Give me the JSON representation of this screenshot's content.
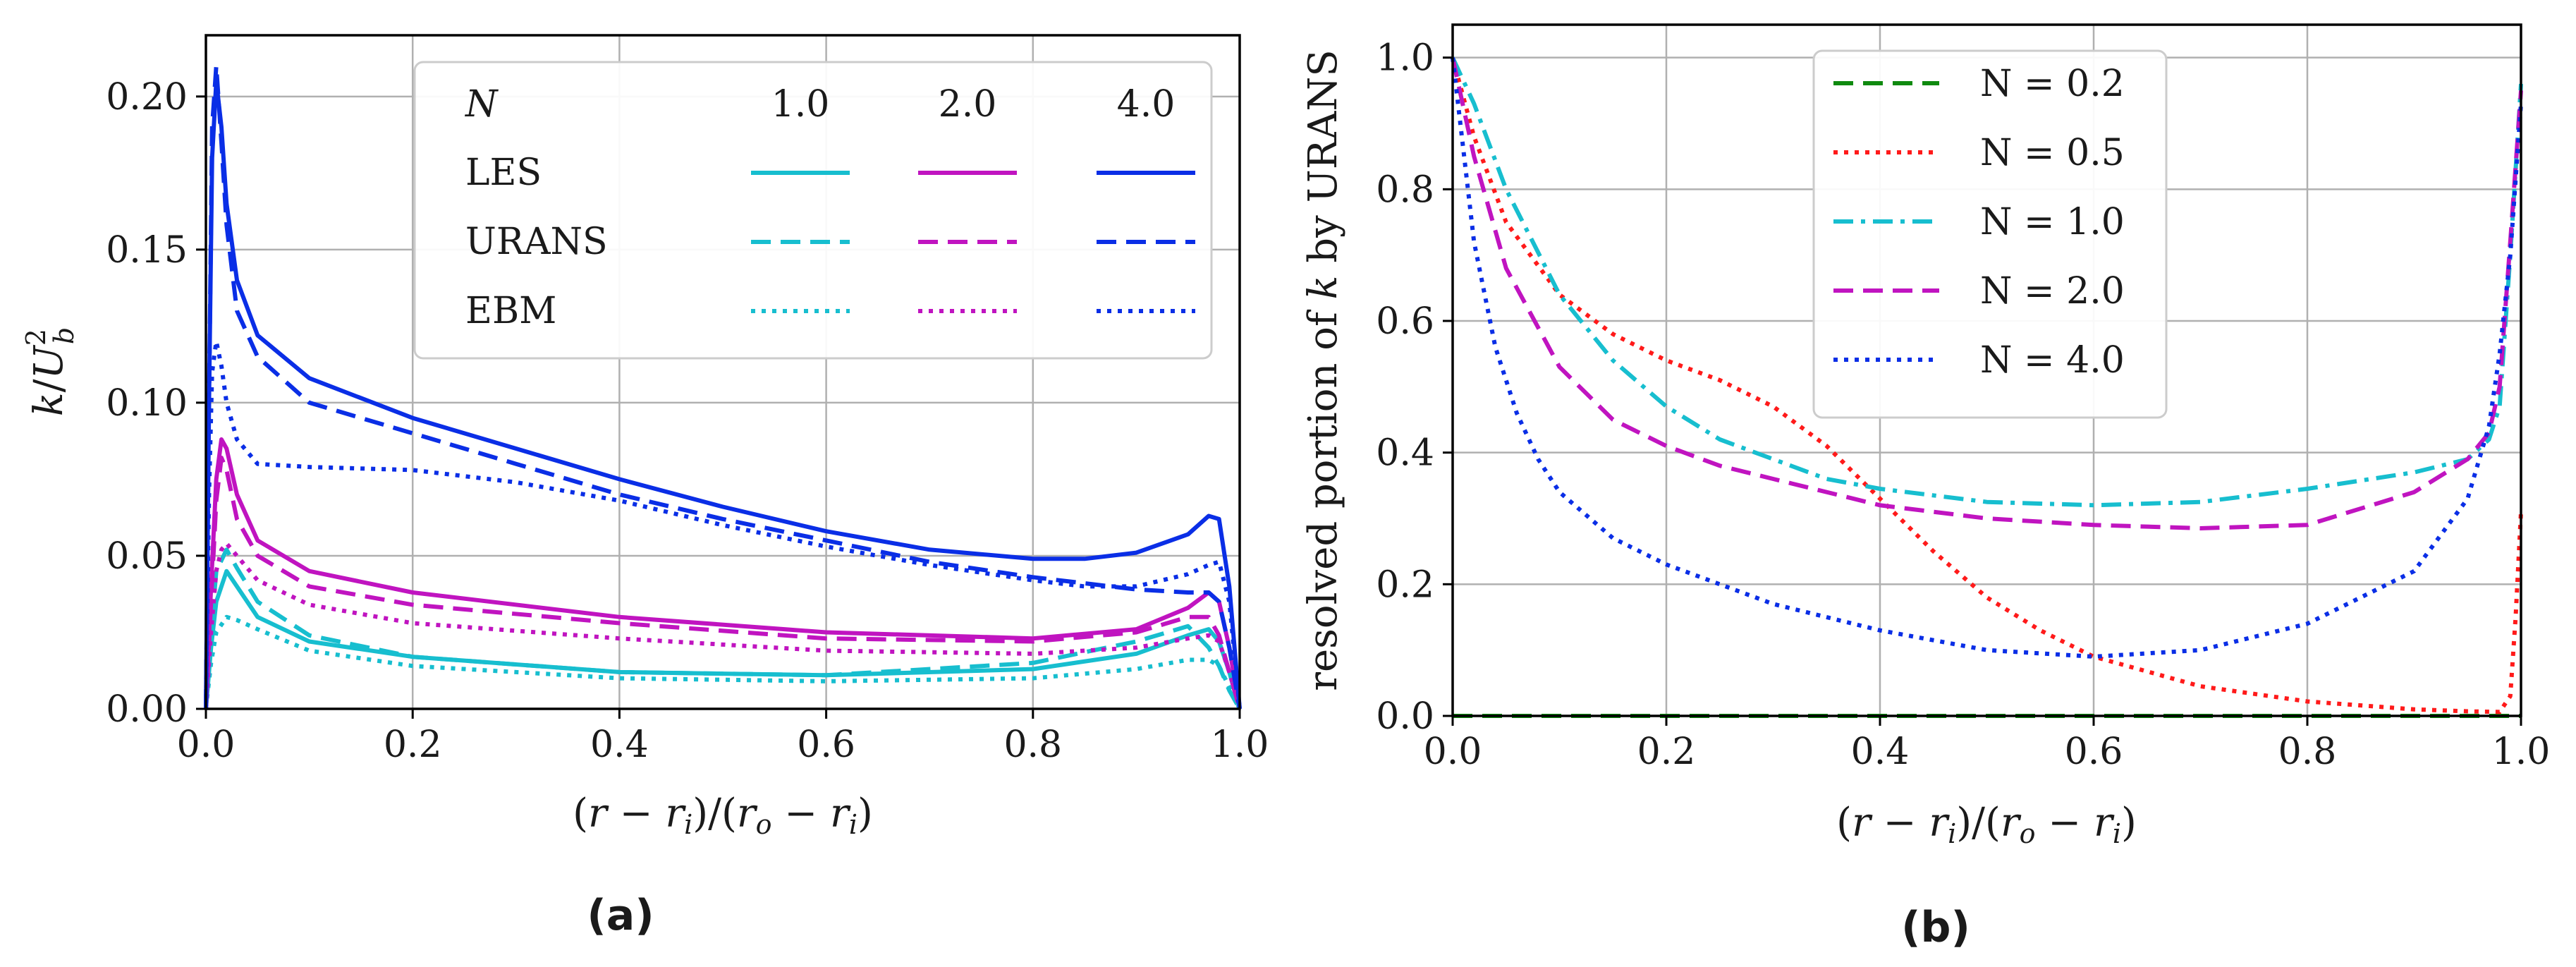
{
  "chart_data": [
    {
      "type": "line",
      "panel": "a",
      "caption": "(a)",
      "xlabel": "(r − r_i)/(r_o − r_i)",
      "ylabel": "k/U_b^2",
      "xlim": [
        0,
        1
      ],
      "ylim": [
        0,
        0.22
      ],
      "xticks": [
        "0.0",
        "0.2",
        "0.4",
        "0.6",
        "0.8",
        "1.0"
      ],
      "yticks": [
        "0.00",
        "0.05",
        "0.10",
        "0.15",
        "0.20"
      ],
      "grid": true,
      "legend_location": "upper-right",
      "legend_table": {
        "header": "N",
        "columns": [
          "1.0",
          "2.0",
          "4.0"
        ],
        "rows": [
          "LES",
          "URANS",
          "EBM"
        ]
      },
      "series": [
        {
          "name": "LES, N = 1.0",
          "model": "LES",
          "color": "#17becf",
          "style": "solid",
          "x": [
            0,
            0.005,
            0.01,
            0.02,
            0.03,
            0.05,
            0.1,
            0.2,
            0.4,
            0.6,
            0.8,
            0.9,
            0.95,
            0.97,
            0.98,
            0.99,
            1.0
          ],
          "y": [
            0,
            0.02,
            0.035,
            0.045,
            0.04,
            0.03,
            0.022,
            0.017,
            0.012,
            0.011,
            0.013,
            0.018,
            0.024,
            0.026,
            0.022,
            0.012,
            0
          ]
        },
        {
          "name": "URANS, N = 1.0",
          "model": "URANS",
          "color": "#17becf",
          "style": "dashed",
          "x": [
            0,
            0.005,
            0.01,
            0.02,
            0.03,
            0.05,
            0.1,
            0.2,
            0.4,
            0.6,
            0.8,
            0.9,
            0.95,
            0.97,
            0.98,
            0.99,
            1.0
          ],
          "y": [
            0,
            0.025,
            0.045,
            0.052,
            0.046,
            0.035,
            0.024,
            0.017,
            0.012,
            0.011,
            0.015,
            0.022,
            0.027,
            0.02,
            0.014,
            0.006,
            0
          ]
        },
        {
          "name": "EBM, N = 1.0",
          "model": "EBM",
          "color": "#17becf",
          "style": "dotted",
          "x": [
            0,
            0.005,
            0.01,
            0.02,
            0.03,
            0.05,
            0.1,
            0.2,
            0.4,
            0.6,
            0.8,
            0.9,
            0.95,
            0.97,
            0.98,
            0.99,
            1.0
          ],
          "y": [
            0,
            0.015,
            0.025,
            0.03,
            0.029,
            0.026,
            0.019,
            0.014,
            0.01,
            0.009,
            0.01,
            0.013,
            0.016,
            0.016,
            0.014,
            0.007,
            0
          ]
        },
        {
          "name": "LES, N = 2.0",
          "model": "LES",
          "color": "#c014c0",
          "style": "solid",
          "x": [
            0,
            0.005,
            0.01,
            0.015,
            0.02,
            0.03,
            0.05,
            0.1,
            0.2,
            0.4,
            0.6,
            0.8,
            0.9,
            0.95,
            0.97,
            0.98,
            0.99,
            1.0
          ],
          "y": [
            0,
            0.04,
            0.075,
            0.088,
            0.085,
            0.07,
            0.055,
            0.045,
            0.038,
            0.03,
            0.025,
            0.023,
            0.026,
            0.033,
            0.038,
            0.035,
            0.02,
            0
          ]
        },
        {
          "name": "URANS, N = 2.0",
          "model": "URANS",
          "color": "#c014c0",
          "style": "dashed",
          "x": [
            0,
            0.005,
            0.01,
            0.015,
            0.02,
            0.03,
            0.05,
            0.1,
            0.2,
            0.4,
            0.6,
            0.8,
            0.9,
            0.95,
            0.97,
            0.98,
            0.99,
            1.0
          ],
          "y": [
            0,
            0.035,
            0.068,
            0.082,
            0.078,
            0.062,
            0.05,
            0.04,
            0.034,
            0.028,
            0.023,
            0.022,
            0.025,
            0.03,
            0.03,
            0.024,
            0.012,
            0
          ]
        },
        {
          "name": "EBM, N = 2.0",
          "model": "EBM",
          "color": "#c014c0",
          "style": "dotted",
          "x": [
            0,
            0.005,
            0.01,
            0.015,
            0.02,
            0.03,
            0.05,
            0.1,
            0.2,
            0.4,
            0.6,
            0.8,
            0.9,
            0.95,
            0.97,
            0.98,
            0.99,
            1.0
          ],
          "y": [
            0,
            0.025,
            0.045,
            0.052,
            0.054,
            0.05,
            0.042,
            0.034,
            0.028,
            0.023,
            0.019,
            0.018,
            0.02,
            0.023,
            0.024,
            0.022,
            0.012,
            0
          ]
        },
        {
          "name": "LES, N = 4.0",
          "model": "LES",
          "color": "#0a2ee6",
          "style": "solid",
          "x": [
            0,
            0.003,
            0.006,
            0.01,
            0.015,
            0.02,
            0.03,
            0.05,
            0.1,
            0.2,
            0.3,
            0.4,
            0.5,
            0.6,
            0.7,
            0.8,
            0.85,
            0.9,
            0.95,
            0.97,
            0.98,
            0.99,
            1.0
          ],
          "y": [
            0,
            0.1,
            0.18,
            0.205,
            0.19,
            0.165,
            0.14,
            0.122,
            0.108,
            0.095,
            0.085,
            0.075,
            0.066,
            0.058,
            0.052,
            0.049,
            0.049,
            0.051,
            0.057,
            0.063,
            0.062,
            0.04,
            0
          ]
        },
        {
          "name": "URANS, N = 4.0",
          "model": "URANS",
          "color": "#0a2ee6",
          "style": "dashed",
          "x": [
            0,
            0.003,
            0.006,
            0.01,
            0.015,
            0.02,
            0.03,
            0.05,
            0.1,
            0.2,
            0.3,
            0.4,
            0.5,
            0.6,
            0.7,
            0.8,
            0.85,
            0.9,
            0.95,
            0.97,
            0.98,
            0.99,
            1.0
          ],
          "y": [
            0,
            0.1,
            0.19,
            0.21,
            0.185,
            0.158,
            0.13,
            0.115,
            0.1,
            0.09,
            0.08,
            0.07,
            0.062,
            0.055,
            0.048,
            0.043,
            0.041,
            0.039,
            0.038,
            0.038,
            0.035,
            0.02,
            0
          ]
        },
        {
          "name": "EBM, N = 4.0",
          "model": "EBM",
          "color": "#0a2ee6",
          "style": "dotted",
          "x": [
            0,
            0.003,
            0.006,
            0.01,
            0.015,
            0.02,
            0.03,
            0.05,
            0.1,
            0.2,
            0.3,
            0.4,
            0.5,
            0.6,
            0.7,
            0.8,
            0.85,
            0.9,
            0.95,
            0.97,
            0.98,
            0.99,
            1.0
          ],
          "y": [
            0,
            0.07,
            0.11,
            0.12,
            0.112,
            0.1,
            0.088,
            0.08,
            0.079,
            0.078,
            0.074,
            0.068,
            0.06,
            0.053,
            0.047,
            0.042,
            0.04,
            0.04,
            0.044,
            0.047,
            0.048,
            0.035,
            0
          ]
        }
      ]
    },
    {
      "type": "line",
      "panel": "b",
      "caption": "(b)",
      "xlabel": "(r − r_i)/(r_o − r_i)",
      "ylabel": "resolved portion of k by URANS",
      "xlim": [
        0,
        1
      ],
      "ylim": [
        0,
        1.05
      ],
      "xticks": [
        "0.0",
        "0.2",
        "0.4",
        "0.6",
        "0.8",
        "1.0"
      ],
      "yticks": [
        "0.0",
        "0.2",
        "0.4",
        "0.6",
        "0.8",
        "1.0"
      ],
      "grid": true,
      "legend_location": "upper-center",
      "series": [
        {
          "name": "N = 0.2",
          "color": "#0f8a0f",
          "style": "dashed",
          "x": [
            0,
            1.0
          ],
          "y": [
            0,
            0
          ]
        },
        {
          "name": "N = 0.5",
          "color": "#ff1a1a",
          "style": "dotted",
          "x": [
            0,
            0.02,
            0.05,
            0.1,
            0.15,
            0.2,
            0.25,
            0.3,
            0.35,
            0.4,
            0.45,
            0.5,
            0.55,
            0.6,
            0.7,
            0.8,
            0.9,
            0.95,
            0.98,
            0.99,
            0.995,
            1.0
          ],
          "y": [
            1.0,
            0.88,
            0.75,
            0.64,
            0.58,
            0.54,
            0.51,
            0.47,
            0.41,
            0.33,
            0.25,
            0.18,
            0.13,
            0.09,
            0.045,
            0.022,
            0.01,
            0.007,
            0.006,
            0.03,
            0.15,
            0.31
          ]
        },
        {
          "name": "N = 1.0",
          "color": "#17becf",
          "style": "dashdot",
          "x": [
            0,
            0.02,
            0.05,
            0.1,
            0.15,
            0.2,
            0.25,
            0.3,
            0.35,
            0.4,
            0.5,
            0.6,
            0.7,
            0.8,
            0.9,
            0.95,
            0.97,
            0.98,
            0.99,
            1.0
          ],
          "y": [
            1.0,
            0.93,
            0.8,
            0.64,
            0.54,
            0.47,
            0.42,
            0.39,
            0.36,
            0.345,
            0.325,
            0.32,
            0.325,
            0.345,
            0.37,
            0.39,
            0.42,
            0.47,
            0.7,
            0.96
          ]
        },
        {
          "name": "N = 2.0",
          "color": "#c014c0",
          "style": "dashed",
          "x": [
            0,
            0.02,
            0.05,
            0.1,
            0.15,
            0.2,
            0.25,
            0.3,
            0.4,
            0.5,
            0.6,
            0.7,
            0.8,
            0.9,
            0.95,
            0.97,
            0.98,
            0.99,
            1.0
          ],
          "y": [
            1.0,
            0.85,
            0.68,
            0.53,
            0.45,
            0.41,
            0.38,
            0.36,
            0.32,
            0.3,
            0.29,
            0.285,
            0.29,
            0.34,
            0.39,
            0.43,
            0.5,
            0.72,
            0.95
          ]
        },
        {
          "name": "N = 4.0",
          "color": "#0a2ee6",
          "style": "dotted",
          "x": [
            0,
            0.01,
            0.02,
            0.04,
            0.06,
            0.08,
            0.1,
            0.15,
            0.2,
            0.3,
            0.4,
            0.5,
            0.6,
            0.7,
            0.8,
            0.9,
            0.95,
            0.97,
            0.98,
            0.99,
            1.0
          ],
          "y": [
            1.0,
            0.86,
            0.72,
            0.56,
            0.46,
            0.39,
            0.34,
            0.27,
            0.23,
            0.17,
            0.13,
            0.1,
            0.09,
            0.1,
            0.14,
            0.22,
            0.33,
            0.44,
            0.55,
            0.7,
            0.93
          ]
        }
      ]
    }
  ]
}
